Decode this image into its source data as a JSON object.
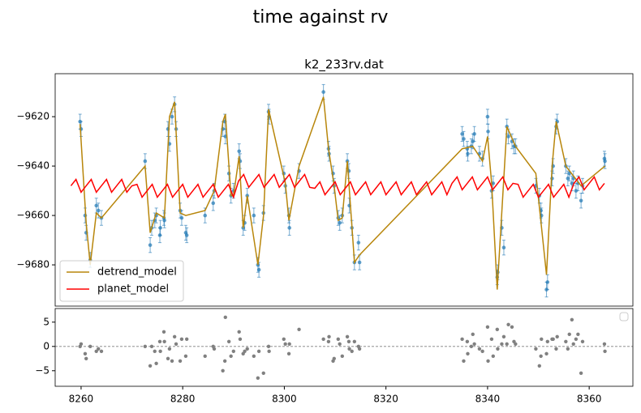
{
  "chart_data": [
    {
      "type": "line",
      "title": "time against rv",
      "subtitle": "k2_233rv.dat",
      "xlim": [
        8254.9,
        8368.6
      ],
      "ylim": [
        -9696.7,
        -9602.6
      ],
      "yticks": [
        {
          "value": -9620,
          "label": "−9620"
        },
        {
          "value": -9640,
          "label": "−9640"
        },
        {
          "value": -9660,
          "label": "−9660"
        },
        {
          "value": -9680,
          "label": "−9680"
        }
      ],
      "legend": "lower left",
      "series": [
        {
          "type": "errorbar",
          "color": "#1f77b4",
          "yerr": 3,
          "x": [
            8259.8,
            8260.0,
            8260.8,
            8261.0,
            8261.8,
            8263.0,
            8263.4,
            8264.0,
            8272.6,
            8273.6,
            8273.9,
            8274.5,
            8274.8,
            8275.5,
            8275.6,
            8276.3,
            8276.4,
            8277.1,
            8277.4,
            8277.9,
            8278.4,
            8278.7,
            8279.5,
            8279.8,
            8280.6,
            8280.8,
            8284.4,
            8286.0,
            8286.2,
            8287.9,
            8288.3,
            8288.4,
            8289.1,
            8289.5,
            8290.0,
            8291.1,
            8291.3,
            8291.9,
            8292.2,
            8292.7,
            8294.0,
            8294.8,
            8295.0,
            8295.9,
            8296.9,
            8297.0,
            8299.9,
            8300.2,
            8300.9,
            8301.0,
            8302.9,
            8307.7,
            8308.7,
            8308.8,
            8309.6,
            8309.8,
            8310.6,
            8310.9,
            8311.4,
            8312.4,
            8312.7,
            8312.8,
            8313.3,
            8313.8,
            8314.6,
            8314.8,
            8335.0,
            8335.3,
            8336.0,
            8336.1,
            8336.8,
            8337.1,
            8337.4,
            8338.4,
            8339.0,
            8340.0,
            8340.1,
            8340.8,
            8341.1,
            8341.9,
            8342.0,
            8342.8,
            8343.2,
            8343.8,
            8344.1,
            8344.8,
            8345.2,
            8345.5,
            8349.5,
            8350.2,
            8350.5,
            8350.6,
            8351.6,
            8351.8,
            8352.7,
            8352.9,
            8353.5,
            8353.7,
            8355.4,
            8355.8,
            8356.1,
            8356.6,
            8356.9,
            8357.4,
            8357.8,
            8358.4,
            8358.7,
            8363.0,
            8363.1
          ],
          "values": [
            -9622,
            -9625,
            -9660,
            -9667,
            -9678,
            -9656,
            -9658,
            -9661,
            -9638,
            -9672,
            -9665,
            -9662,
            -9660,
            -9668,
            -9665,
            -9661,
            -9662,
            -9625,
            -9631,
            -9620,
            -9615,
            -9625,
            -9658,
            -9661,
            -9667,
            -9668,
            -9660,
            -9655,
            -9650,
            -9625,
            -9622,
            -9628,
            -9643,
            -9652,
            -9650,
            -9634,
            -9638,
            -9665,
            -9663,
            -9652,
            -9660,
            -9680,
            -9682,
            -9659,
            -9618,
            -9620,
            -9643,
            -9648,
            -9660,
            -9665,
            -9642,
            -9610,
            -9633,
            -9635,
            -9643,
            -9648,
            -9661,
            -9663,
            -9660,
            -9638,
            -9642,
            -9656,
            -9665,
            -9679,
            -9671,
            -9679,
            -9627,
            -9629,
            -9633,
            -9635,
            -9632,
            -9630,
            -9627,
            -9635,
            -9637,
            -9620,
            -9626,
            -9650,
            -9647,
            -9685,
            -9683,
            -9665,
            -9673,
            -9624,
            -9628,
            -9630,
            -9632,
            -9632,
            -9648,
            -9652,
            -9658,
            -9660,
            -9690,
            -9687,
            -9645,
            -9640,
            -9624,
            -9622,
            -9640,
            -9645,
            -9643,
            -9647,
            -9645,
            -9650,
            -9647,
            -9654,
            -9648,
            -9637,
            -9638
          ]
        },
        {
          "type": "line",
          "name": "detrend_model",
          "color": "#b8860b",
          "x": [
            8259.8,
            8261.0,
            8261.8,
            8263.0,
            8264.0,
            8272.6,
            8273.6,
            8274.8,
            8276.4,
            8277.4,
            8278.4,
            8279.5,
            8280.6,
            8284.4,
            8286.2,
            8287.9,
            8288.4,
            8289.5,
            8290.0,
            8291.1,
            8291.9,
            8292.7,
            8294.8,
            8295.9,
            8296.9,
            8300.2,
            8300.9,
            8302.9,
            8307.7,
            8308.7,
            8309.8,
            8310.6,
            8311.4,
            8312.4,
            8313.8,
            8314.8,
            8335.0,
            8337.1,
            8339.0,
            8340.0,
            8340.8,
            8341.9,
            8343.8,
            8345.5,
            8349.5,
            8351.6,
            8352.7,
            8353.5,
            8355.4,
            8358.4,
            8363.1
          ],
          "values": [
            -9623,
            -9663,
            -9680,
            -9659,
            -9661,
            -9640,
            -9667,
            -9659,
            -9661,
            -9620,
            -9614,
            -9659,
            -9660,
            -9658,
            -9650,
            -9622,
            -9619,
            -9652,
            -9652,
            -9636,
            -9665,
            -9652,
            -9680,
            -9660,
            -9617,
            -9647,
            -9662,
            -9640,
            -9612,
            -9633,
            -9648,
            -9662,
            -9661,
            -9638,
            -9679,
            -9676,
            -9633,
            -9632,
            -9638,
            -9628,
            -9647,
            -9690,
            -9624,
            -9632,
            -9643,
            -9684,
            -9640,
            -9622,
            -9640,
            -9648,
            -9640
          ]
        },
        {
          "type": "line",
          "name": "planet_model",
          "color": "#ff0000",
          "x": [
            8258,
            8259,
            8260,
            8261,
            8262,
            8263,
            8264,
            8265,
            8266,
            8267,
            8268,
            8269,
            8270,
            8271,
            8272,
            8273,
            8274,
            8275,
            8276,
            8277,
            8278,
            8279,
            8280,
            8281,
            8282,
            8283,
            8284,
            8285,
            8286,
            8287,
            8288,
            8289,
            8290,
            8291,
            8292,
            8293,
            8294,
            8295,
            8296,
            8297,
            8298,
            8299,
            8300,
            8301,
            8302,
            8303,
            8304,
            8305,
            8306,
            8307,
            8308,
            8309,
            8310,
            8311,
            8312,
            8313,
            8314,
            8315,
            8316,
            8317,
            8318,
            8319,
            8320,
            8321,
            8322,
            8323,
            8324,
            8325,
            8326,
            8327,
            8328,
            8329,
            8330,
            8331,
            8332,
            8333,
            8334,
            8335,
            8336,
            8337,
            8338,
            8339,
            8340,
            8341,
            8342,
            8343,
            8344,
            8345,
            8346,
            8347,
            8348,
            8349,
            8350,
            8351,
            8352,
            8353,
            8354,
            8355,
            8356,
            8357,
            8358,
            8359,
            8360,
            8361,
            8362,
            8363
          ],
          "values": [
            -9648,
            -9645.4,
            -9650.6,
            -9648,
            -9645.4,
            -9650.6,
            -9648,
            -9645.4,
            -9650.6,
            -9648,
            -9645.4,
            -9650.6,
            -9648,
            -9647.4,
            -9652.6,
            -9650,
            -9647.4,
            -9652.6,
            -9650,
            -9647.4,
            -9652.6,
            -9650,
            -9647.4,
            -9652.6,
            -9650,
            -9647.4,
            -9652.6,
            -9650,
            -9647.4,
            -9652.6,
            -9650,
            -9647.4,
            -9652.6,
            -9646,
            -9643.4,
            -9648.6,
            -9646,
            -9643.4,
            -9648.6,
            -9646,
            -9643.4,
            -9648.6,
            -9646,
            -9643.4,
            -9648.6,
            -9646,
            -9643.4,
            -9648.6,
            -9649,
            -9646.4,
            -9651.6,
            -9649,
            -9646.4,
            -9651.6,
            -9649,
            -9646.4,
            -9651.6,
            -9649,
            -9646.4,
            -9651.6,
            -9649,
            -9646.4,
            -9651.6,
            -9649,
            -9646.4,
            -9651.6,
            -9649,
            -9646.4,
            -9651.6,
            -9649,
            -9646.4,
            -9651.6,
            -9649,
            -9646.4,
            -9651.6,
            -9647,
            -9644.4,
            -9649.6,
            -9647,
            -9644.4,
            -9649.6,
            -9647,
            -9644.4,
            -9649.6,
            -9647,
            -9644.4,
            -9649.6,
            -9647,
            -9647.4,
            -9652.6,
            -9650,
            -9647.4,
            -9652.6,
            -9650,
            -9647.4,
            -9652.6,
            -9650,
            -9647.4,
            -9652.6,
            -9647,
            -9644.4,
            -9649.6,
            -9647,
            -9644.4,
            -9649.6,
            -9647
          ]
        }
      ]
    },
    {
      "type": "scatter",
      "xlim": [
        8254.9,
        8368.6
      ],
      "ylim": [
        -8.2,
        7.8
      ],
      "xticks": [
        8260,
        8280,
        8300,
        8320,
        8340,
        8360
      ],
      "yticks": [
        {
          "value": 5,
          "label": "5"
        },
        {
          "value": 0,
          "label": "0"
        },
        {
          "value": -5,
          "label": "−5"
        }
      ],
      "hline": 0,
      "legend": "upper right",
      "series": [
        {
          "color": "#808080",
          "x": [
            8259.8,
            8260.0,
            8260.8,
            8261.0,
            8261.8,
            8263.0,
            8263.4,
            8264.0,
            8272.6,
            8273.6,
            8273.9,
            8274.5,
            8274.8,
            8275.5,
            8275.6,
            8276.3,
            8276.4,
            8277.1,
            8277.4,
            8277.9,
            8278.4,
            8278.7,
            8279.5,
            8279.8,
            8280.6,
            8280.8,
            8284.4,
            8286.0,
            8286.2,
            8287.9,
            8288.3,
            8288.4,
            8289.1,
            8289.5,
            8290.0,
            8291.1,
            8291.3,
            8291.9,
            8292.2,
            8292.7,
            8294.0,
            8294.8,
            8295.0,
            8295.9,
            8296.9,
            8297.0,
            8299.9,
            8300.2,
            8300.9,
            8301.0,
            8302.9,
            8307.7,
            8308.7,
            8308.8,
            8309.6,
            8309.8,
            8310.6,
            8310.9,
            8311.4,
            8312.4,
            8312.7,
            8312.8,
            8313.3,
            8313.8,
            8314.6,
            8314.8,
            8335.0,
            8335.3,
            8336.0,
            8336.1,
            8336.8,
            8337.1,
            8337.4,
            8338.4,
            8339.0,
            8340.0,
            8340.1,
            8340.8,
            8341.1,
            8341.9,
            8342.0,
            8342.8,
            8343.2,
            8343.8,
            8344.1,
            8344.8,
            8345.2,
            8345.5,
            8349.5,
            8350.2,
            8350.5,
            8350.6,
            8351.6,
            8351.8,
            8352.7,
            8352.9,
            8353.5,
            8353.7,
            8355.4,
            8355.8,
            8356.1,
            8356.6,
            8356.9,
            8357.4,
            8357.8,
            8358.4,
            8358.7,
            8363.0,
            8363.1
          ],
          "values": [
            0,
            0.5,
            -1.5,
            -2.5,
            0,
            -1,
            -0.5,
            -1,
            0,
            -4,
            0,
            -1,
            -3.5,
            1,
            -1,
            3,
            1,
            -2.5,
            -0.5,
            -3,
            2,
            0.5,
            -3,
            1.5,
            -2,
            1.5,
            -2,
            0,
            -0.5,
            -5,
            -3,
            6,
            1,
            -2,
            -1,
            3,
            1.5,
            -1.5,
            -1,
            -0.5,
            -2,
            -6.5,
            -1,
            -5.5,
            0,
            -1,
            1.5,
            0.5,
            -1.5,
            0.5,
            3.5,
            1.5,
            1,
            2,
            -3,
            -2.5,
            1.5,
            0.5,
            -2,
            2,
            1,
            -0.5,
            -1,
            1,
            0,
            -0.5,
            1.5,
            -3,
            1,
            -1.5,
            0,
            2.5,
            0.5,
            -0.5,
            -1,
            4,
            -3,
            1.5,
            -2,
            3.5,
            -0.5,
            0.5,
            2,
            0.5,
            4.5,
            4,
            1,
            0.5,
            -0.5,
            -4,
            -2,
            1.5,
            -1.5,
            1,
            1.5,
            1.5,
            -0.5,
            2,
            1,
            -0.5,
            2.5,
            5.5,
            0.5,
            1.5,
            2.5,
            -5.5,
            1,
            0.5,
            -1
          ]
        }
      ]
    }
  ]
}
